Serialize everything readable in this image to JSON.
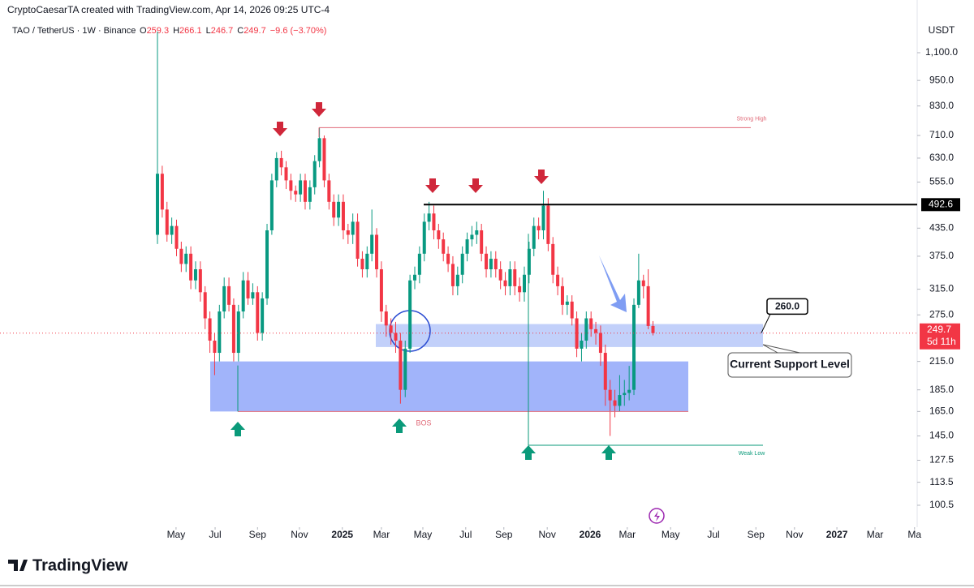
{
  "header": {
    "credit": "CryptoCaesarTA created with TradingView.com, Apr 14, 2026 09:25 UTC-4",
    "symbol": "TAO / TetherUS · 1W · Binance",
    "ohlc_letters": [
      "O",
      "H",
      "L",
      "C"
    ],
    "change": "−9.6 (−3.70%)",
    "currency": "USDT",
    "countdown": "5d 11h",
    "brand": "TradingView"
  },
  "chart_data": {
    "type": "candlestick",
    "log_scale": true,
    "up_color": "#089981",
    "down_color": "#f23645",
    "open": [
      420,
      580,
      480,
      420,
      440,
      390,
      360,
      380,
      330,
      350,
      310,
      270,
      240,
      225,
      280,
      320,
      290,
      225,
      280,
      330,
      300,
      310,
      250,
      300,
      430,
      560,
      630,
      600,
      560,
      530,
      520,
      560,
      500,
      540,
      620,
      700,
      560,
      500,
      460,
      500,
      430,
      420,
      450,
      370,
      350,
      380,
      420,
      350,
      280,
      260,
      250,
      240,
      185,
      230,
      330,
      340,
      380,
      450,
      470,
      430,
      410,
      380,
      360,
      320,
      340,
      380,
      410,
      420,
      430,
      380,
      350,
      370,
      350,
      330,
      320,
      350,
      320,
      310,
      340,
      390,
      440,
      430,
      490,
      400,
      340,
      320,
      290,
      295,
      270,
      230,
      240,
      270,
      255,
      250,
      225,
      185,
      175,
      170,
      180,
      182,
      185,
      290,
      330,
      320,
      259.3
    ],
    "high": [
      1230,
      605,
      500,
      460,
      455,
      405,
      395,
      395,
      365,
      365,
      320,
      280,
      250,
      290,
      335,
      335,
      300,
      290,
      345,
      345,
      325,
      320,
      310,
      445,
      580,
      650,
      655,
      620,
      580,
      545,
      580,
      580,
      560,
      640,
      740,
      710,
      580,
      520,
      520,
      520,
      445,
      470,
      470,
      385,
      395,
      480,
      435,
      365,
      290,
      270,
      265,
      250,
      240,
      340,
      355,
      395,
      470,
      500,
      490,
      445,
      425,
      395,
      375,
      355,
      395,
      425,
      440,
      450,
      445,
      395,
      385,
      385,
      365,
      345,
      365,
      365,
      335,
      355,
      405,
      460,
      460,
      530,
      510,
      415,
      355,
      335,
      305,
      305,
      280,
      250,
      280,
      280,
      265,
      260,
      235,
      195,
      185,
      200,
      195,
      210,
      300,
      380,
      340,
      350,
      266.1
    ],
    "low": [
      400,
      460,
      405,
      400,
      375,
      345,
      345,
      315,
      315,
      295,
      255,
      225,
      200,
      215,
      270,
      280,
      215,
      215,
      270,
      290,
      290,
      240,
      240,
      290,
      420,
      540,
      575,
      535,
      505,
      500,
      500,
      480,
      480,
      520,
      600,
      540,
      480,
      440,
      440,
      410,
      400,
      400,
      355,
      335,
      335,
      365,
      335,
      265,
      245,
      235,
      225,
      172,
      178,
      225,
      315,
      325,
      365,
      430,
      410,
      390,
      365,
      345,
      305,
      305,
      325,
      365,
      395,
      400,
      365,
      335,
      335,
      335,
      315,
      305,
      305,
      305,
      295,
      295,
      325,
      375,
      410,
      410,
      385,
      325,
      305,
      275,
      275,
      260,
      220,
      215,
      230,
      245,
      235,
      210,
      170,
      145,
      160,
      165,
      170,
      175,
      180,
      285,
      300,
      255,
      246.7
    ],
    "close": [
      580,
      480,
      420,
      440,
      390,
      360,
      380,
      330,
      350,
      310,
      270,
      240,
      225,
      280,
      320,
      290,
      225,
      280,
      330,
      300,
      310,
      250,
      300,
      430,
      560,
      630,
      600,
      560,
      530,
      520,
      560,
      500,
      540,
      620,
      700,
      560,
      500,
      460,
      500,
      430,
      420,
      450,
      370,
      350,
      380,
      420,
      350,
      280,
      260,
      250,
      240,
      185,
      230,
      330,
      340,
      380,
      450,
      470,
      430,
      410,
      380,
      360,
      320,
      340,
      380,
      410,
      420,
      430,
      380,
      350,
      370,
      350,
      330,
      320,
      350,
      320,
      310,
      340,
      390,
      440,
      430,
      490,
      400,
      340,
      320,
      290,
      295,
      270,
      230,
      240,
      270,
      255,
      250,
      225,
      185,
      175,
      170,
      180,
      182,
      185,
      290,
      330,
      320,
      259.3,
      249.7
    ],
    "xlim": [
      -33.05,
      159.45
    ],
    "xticks": [
      {
        "value": 3.9,
        "label": "May"
      },
      {
        "value": 12.1,
        "label": "Jul"
      },
      {
        "value": 21.0,
        "label": "Sep"
      },
      {
        "value": 29.8,
        "label": "Nov"
      },
      {
        "value": 38.8,
        "label": "2025"
      },
      {
        "value": 47.0,
        "label": "Mar"
      },
      {
        "value": 55.7,
        "label": "May"
      },
      {
        "value": 64.7,
        "label": "Jul"
      },
      {
        "value": 72.7,
        "label": "Sep"
      },
      {
        "value": 81.8,
        "label": "Nov"
      },
      {
        "value": 90.8,
        "label": "2026"
      },
      {
        "value": 98.6,
        "label": "Mar"
      },
      {
        "value": 107.7,
        "label": "May"
      },
      {
        "value": 116.7,
        "label": "Jul"
      },
      {
        "value": 125.6,
        "label": "Sep"
      },
      {
        "value": 133.7,
        "label": "Nov"
      },
      {
        "value": 142.6,
        "label": "2027"
      },
      {
        "value": 150.6,
        "label": "Mar"
      },
      {
        "value": 158.9,
        "label": "Ma"
      }
    ],
    "ylim": [
      89.5,
      1278
    ],
    "yticks": [
      {
        "value": 100.5,
        "label": "100.5"
      },
      {
        "value": 113.5,
        "label": "113.5"
      },
      {
        "value": 127.5,
        "label": "127.5"
      },
      {
        "value": 145,
        "label": "145.0"
      },
      {
        "value": 165,
        "label": "165.0"
      },
      {
        "value": 185,
        "label": "185.0"
      },
      {
        "value": 215,
        "label": "215.0"
      },
      {
        "value": 275,
        "label": "275.0"
      },
      {
        "value": 315,
        "label": "315.0"
      },
      {
        "value": 375,
        "label": "375.0"
      },
      {
        "value": 435,
        "label": "435.0"
      },
      {
        "value": 555,
        "label": "555.0"
      },
      {
        "value": 630,
        "label": "630.0"
      },
      {
        "value": 710,
        "label": "710.0"
      },
      {
        "value": 830,
        "label": "830.0"
      },
      {
        "value": 950,
        "label": "950.0"
      },
      {
        "value": 1100,
        "label": "1,100.0"
      }
    ],
    "levels": [
      {
        "label": "Strong High",
        "value": 740
      },
      {
        "value": 492.6
      },
      {
        "label": "BOS",
        "value": 165
      },
      {
        "label": "Weak Low",
        "value": 138
      }
    ],
    "zones": [
      {
        "low": 232,
        "high": 262
      },
      {
        "low": 165,
        "high": 215
      }
    ],
    "callouts": [
      {
        "value": 260,
        "label": "260.0"
      },
      {
        "label": "Current Support Level"
      }
    ]
  }
}
